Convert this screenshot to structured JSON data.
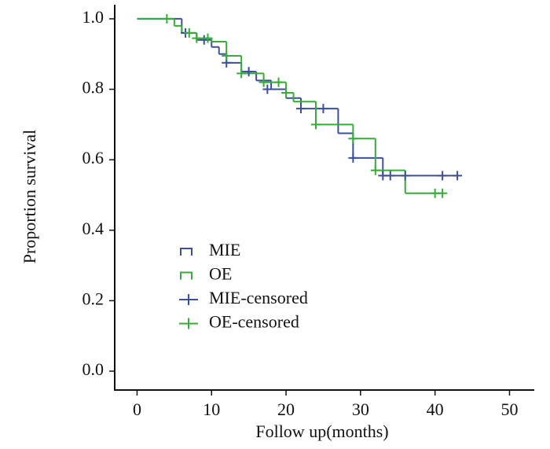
{
  "chart_data": {
    "type": "step",
    "xlabel": "Follow up(months)",
    "ylabel": "Proportion survival",
    "xlim": [
      -3,
      53
    ],
    "ylim": [
      -0.05,
      1.04
    ],
    "xticks": [
      0,
      10,
      20,
      30,
      40,
      50
    ],
    "yticks": [
      {
        "value": 0,
        "label": "0.0"
      },
      0.2,
      0.4,
      0.6,
      0.8,
      {
        "value": 1,
        "label": "1.0"
      }
    ],
    "series": [
      {
        "name": "MIE",
        "color": "#3d4f9c",
        "x": [
          0,
          6,
          8,
          10,
          11,
          12,
          14,
          16,
          18,
          20,
          22,
          27,
          29,
          33,
          43
        ],
        "values": [
          1,
          0.96,
          0.94,
          0.92,
          0.9,
          0.875,
          0.85,
          0.825,
          0.8,
          0.775,
          0.745,
          0.675,
          0.605,
          0.555,
          0.555
        ]
      },
      {
        "name": "OE",
        "color": "#3aaa3a",
        "x": [
          0,
          5,
          6,
          8,
          10,
          12,
          14,
          17,
          20,
          21,
          24,
          29,
          32,
          36,
          41
        ],
        "values": [
          1,
          0.98,
          0.96,
          0.945,
          0.935,
          0.895,
          0.845,
          0.82,
          0.79,
          0.765,
          0.7,
          0.66,
          0.57,
          0.505,
          0.505
        ]
      }
    ],
    "censored": [
      {
        "name": "MIE-censored",
        "color": "#3d4f9c",
        "x": [
          6.5,
          9,
          12,
          15,
          17.5,
          22,
          25,
          29,
          33,
          34,
          36,
          41,
          43
        ],
        "values": [
          0.96,
          0.94,
          0.875,
          0.85,
          0.8,
          0.745,
          0.745,
          0.605,
          0.555,
          0.555,
          0.555,
          0.555,
          0.555
        ]
      },
      {
        "name": "OE-censored",
        "color": "#3aaa3a",
        "x": [
          4,
          7,
          8,
          9.5,
          12,
          14,
          17,
          19,
          20,
          24,
          29,
          32,
          40,
          41
        ],
        "values": [
          1,
          0.96,
          0.945,
          0.945,
          0.895,
          0.845,
          0.82,
          0.82,
          0.79,
          0.7,
          0.66,
          0.57,
          0.505,
          0.505
        ]
      }
    ]
  }
}
